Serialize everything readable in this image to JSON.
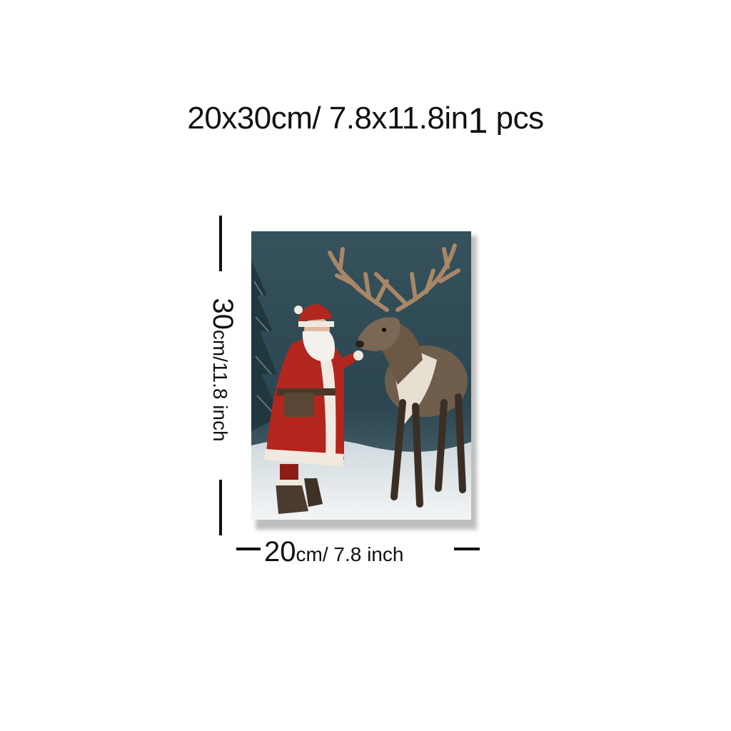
{
  "heading": {
    "size_text": "20x30cm/ 7.8x11.8in",
    "qty_number": "1",
    "qty_unit": "pcs"
  },
  "height_dimension": {
    "number": "30",
    "unit_text": "cm/11.8 inch"
  },
  "width_dimension": {
    "number": "20",
    "unit_text": "cm/ 7.8 inch"
  },
  "artwork": {
    "subject": "Santa Claus petting a reindeer in a snowy forest",
    "colors": {
      "background": "#2f4a55",
      "snow": "#e9eef0",
      "santa_red": "#b3261e",
      "fur_white": "#efe9df",
      "reindeer_brown": "#6b5a47",
      "antler": "#9a7a5c"
    }
  }
}
